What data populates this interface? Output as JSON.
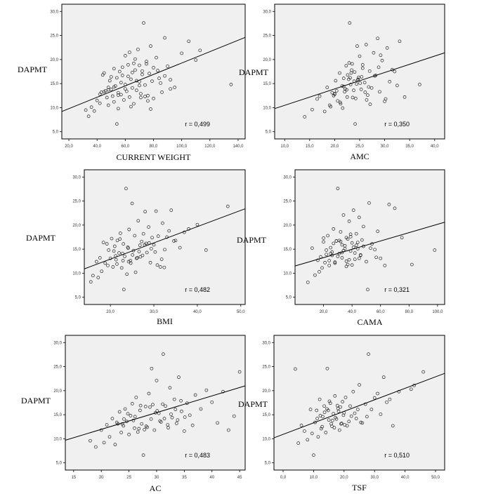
{
  "chart_data": [
    {
      "type": "scatter",
      "xlabel": "CURRENT WEIGHT",
      "ylabel": "DAPMT",
      "annotation": "r = 0,499",
      "xlim": [
        15,
        145
      ],
      "ylim": [
        3.5,
        31.5
      ],
      "x_ticks": [
        "20,0",
        "40,0",
        "60,0",
        "80,0",
        "100,0",
        "120,0",
        "140,0"
      ],
      "x_tick_values": [
        20,
        40,
        60,
        80,
        100,
        120,
        140
      ],
      "y_ticks": [
        "5,0",
        "10,0",
        "15,0",
        "20,0",
        "25,0",
        "30,0"
      ],
      "y_tick_values": [
        5,
        10,
        15,
        20,
        25,
        30
      ],
      "fit_line": {
        "x": [
          15,
          145
        ],
        "y": [
          9.2,
          24.6
        ]
      },
      "x": [
        32,
        34,
        36,
        38,
        40,
        42,
        43,
        44,
        45,
        46,
        47,
        48,
        48,
        49,
        50,
        51,
        52,
        52,
        53,
        54,
        55,
        55,
        56,
        57,
        57,
        58,
        59,
        60,
        60,
        61,
        62,
        63,
        63,
        64,
        65,
        66,
        66,
        67,
        68,
        69,
        70,
        70,
        71,
        72,
        73,
        74,
        75,
        76,
        77,
        78,
        79,
        80,
        82,
        84,
        86,
        88,
        90,
        92,
        95,
        100,
        105,
        110,
        113,
        135,
        50,
        55,
        60,
        65,
        70,
        75,
        80,
        85,
        58,
        62,
        68,
        72,
        76,
        45,
        52,
        64,
        74,
        78,
        88,
        42,
        48,
        54,
        67,
        71,
        83,
        92
      ],
      "y": [
        9.5,
        8.2,
        10.1,
        9.3,
        11.5,
        12.8,
        13.2,
        16.8,
        17.2,
        13.5,
        12.1,
        14.2,
        10.5,
        15.6,
        13.8,
        12.4,
        18.1,
        11.2,
        14.5,
        16.2,
        13.1,
        9.8,
        17.5,
        12.7,
        15.2,
        18.4,
        11.6,
        14.8,
        20.8,
        13.4,
        16.5,
        12.2,
        21.5,
        15.9,
        14.1,
        19.2,
        10.8,
        17.8,
        13.6,
        22.1,
        15.4,
        18.8,
        12.9,
        16.9,
        27.6,
        14.7,
        19.6,
        12.5,
        17.1,
        22.8,
        15.5,
        18.3,
        20.4,
        16.1,
        13.2,
        24.5,
        18.6,
        15.8,
        14.2,
        21.3,
        23.8,
        19.9,
        21.9,
        14.8,
        16.4,
        12.6,
        13.9,
        17.3,
        14.6,
        19.1,
        11.9,
        15.1,
        16.7,
        18.9,
        15.6,
        17.6,
        11.4,
        13.3,
        14.3,
        10.2,
        12.3,
        9.7,
        16.6,
        10.9,
        13.7,
        6.6,
        20.1,
        12.1,
        17.7,
        13.9
      ]
    },
    {
      "type": "scatter",
      "xlabel": "AMC",
      "ylabel": "DAPMT",
      "annotation": "r = 0,350",
      "xlim": [
        8,
        42
      ],
      "ylim": [
        3.5,
        31.5
      ],
      "x_ticks": [
        "10,0",
        "15,0",
        "20,0",
        "25,0",
        "30,0",
        "35,0",
        "40,0"
      ],
      "x_tick_values": [
        10,
        15,
        20,
        25,
        30,
        35,
        40
      ],
      "y_ticks": [
        "5,0",
        "10,0",
        "15,0",
        "20,0",
        "25,0",
        "30,0"
      ],
      "y_tick_values": [
        5,
        10,
        15,
        20,
        25,
        30
      ],
      "fit_line": {
        "x": [
          8,
          42
        ],
        "y": [
          9.8,
          21.4
        ]
      },
      "x": [
        14,
        15.5,
        16.5,
        17,
        18,
        18.5,
        19,
        19.5,
        20,
        20.2,
        20.6,
        21,
        21.2,
        21.5,
        21.8,
        22,
        22.3,
        22.5,
        22.8,
        23,
        23.2,
        23.5,
        23.8,
        24,
        24.2,
        24.5,
        24.8,
        25,
        25.3,
        25.6,
        26,
        26.3,
        26.6,
        27,
        27.4,
        27.8,
        28.2,
        28.6,
        29,
        29.5,
        30,
        30.5,
        31,
        31.5,
        32,
        32.5,
        33,
        34,
        37,
        19.2,
        20.4,
        21.6,
        22.6,
        23.6,
        24.6,
        25.6,
        26.8,
        28,
        29.2,
        21.1,
        22.1,
        23.1,
        24.1,
        25.1,
        26.1,
        27.1,
        20,
        23.4,
        24.4,
        25.4,
        22.9,
        23.9,
        30.2,
        21.8,
        19.8,
        22.4,
        26.4,
        28.8,
        24.7,
        23.3
      ],
      "y": [
        8.1,
        9.6,
        11.8,
        12.4,
        9.2,
        14.2,
        10.5,
        13.1,
        12.8,
        15.6,
        11.4,
        17.2,
        10.8,
        14.5,
        16.1,
        13.3,
        18.7,
        12.2,
        15.9,
        27.6,
        14.8,
        19.1,
        13.6,
        17.4,
        11.9,
        22.8,
        16.3,
        20.7,
        13.8,
        18.9,
        15.2,
        23.1,
        12.6,
        17.6,
        14.1,
        21.4,
        16.7,
        24.4,
        13.3,
        19.8,
        11.3,
        22.4,
        15.4,
        17.9,
        17.5,
        14.6,
        23.8,
        12.2,
        14.8,
        10.2,
        13.5,
        9.9,
        16.8,
        12.1,
        15.7,
        18.2,
        14.3,
        16.6,
        20.9,
        11.1,
        13.9,
        16.2,
        6.6,
        15.1,
        13.2,
        10.7,
        12.9,
        17.8,
        14.9,
        16.4,
        19.3,
        15.5,
        11.8,
        14.4,
        12.5,
        13.7,
        11.6,
        18.4,
        15.9,
        17.2
      ]
    },
    {
      "type": "scatter",
      "xlabel": "BMI",
      "ylabel": "DAPMT",
      "annotation": "r = 0,482",
      "xlim": [
        14,
        51
      ],
      "ylim": [
        3.5,
        31.5
      ],
      "x_ticks": [
        "20,0",
        "30,0",
        "40,0",
        "50,0"
      ],
      "x_tick_values": [
        20,
        30,
        40,
        50
      ],
      "y_ticks": [
        "5,0",
        "10,0",
        "15,0",
        "20,0",
        "25,0",
        "30,0"
      ],
      "y_tick_values": [
        5,
        10,
        15,
        20,
        25,
        30
      ],
      "fit_line": {
        "x": [
          14,
          51
        ],
        "y": [
          10.9,
          23.4
        ]
      },
      "x": [
        15.5,
        16,
        16.8,
        17.2,
        17.6,
        18,
        18.4,
        18.8,
        19.2,
        19.6,
        20,
        20.3,
        20.6,
        21,
        21.3,
        21.6,
        22,
        22.3,
        22.6,
        23,
        23.3,
        23.6,
        24,
        24.3,
        24.6,
        25,
        25.3,
        25.6,
        26,
        26.4,
        26.8,
        27.2,
        27.6,
        28,
        28.4,
        28.8,
        29.2,
        29.6,
        30,
        30.5,
        31,
        31.5,
        32,
        32.5,
        33,
        34,
        35,
        36,
        37,
        38,
        40,
        42,
        47,
        21.5,
        22.8,
        24.2,
        25.8,
        27.4,
        28.9,
        30.3,
        31.8,
        33.5,
        23.8,
        26.2,
        29.4,
        19.4,
        20.8,
        22.2,
        25.1,
        27.9,
        32.4,
        34.6,
        24.7,
        26.6,
        21.2,
        23.1,
        28.2,
        30.8,
        22.9,
        24.1,
        26.9
      ],
      "y": [
        8.2,
        9.5,
        12.4,
        9.1,
        13.2,
        10.4,
        16.4,
        12.1,
        16.1,
        14.8,
        13.1,
        17.2,
        11.3,
        15.6,
        12.8,
        16.8,
        14.2,
        18.3,
        11.1,
        16.1,
        13.5,
        27.6,
        15.4,
        19.1,
        12.6,
        24.5,
        14.7,
        17.8,
        13.1,
        20.9,
        15.8,
        16.6,
        18.2,
        22.8,
        14.3,
        19.6,
        12.2,
        17.4,
        15.9,
        22.9,
        17.7,
        11.3,
        20.4,
        14.9,
        17.5,
        23.1,
        16.8,
        15.3,
        18.5,
        19.2,
        20.1,
        14.8,
        23.9,
        11.9,
        14.1,
        12.4,
        10.2,
        13.7,
        16.3,
        14.4,
        12.9,
        18.8,
        9.8,
        13.2,
        15.1,
        11.6,
        14.6,
        17.1,
        13.8,
        15.9,
        11.2,
        16.7,
        12.1,
        14.5,
        13.6,
        6.6,
        16.2,
        11.7,
        12.6,
        15.2,
        13.4
      ]
    },
    {
      "type": "scatter",
      "xlabel": "CAMA",
      "ylabel": "DAPMT",
      "annotation": "r = 0,321",
      "xlim": [
        0,
        105
      ],
      "ylim": [
        3.5,
        31.5
      ],
      "x_ticks": [
        "20,0",
        "40,0",
        "60,0",
        "80,0",
        "100,0"
      ],
      "x_tick_values": [
        20,
        40,
        60,
        80,
        100
      ],
      "y_ticks": [
        "5,0",
        "10,0",
        "15,0",
        "20,0",
        "25,0",
        "30,0"
      ],
      "y_tick_values": [
        5,
        10,
        15,
        20,
        25,
        30
      ],
      "fit_line": {
        "x": [
          0,
          105
        ],
        "y": [
          11.5,
          20.6
        ]
      },
      "x": [
        9,
        12,
        14,
        16,
        17,
        18,
        19,
        20,
        21,
        22,
        23,
        24,
        25,
        26,
        27,
        28,
        29,
        30,
        31,
        32,
        33,
        34,
        35,
        36,
        37,
        38,
        39,
        40,
        41,
        42,
        43,
        44,
        45,
        46,
        47,
        48,
        50,
        52,
        54,
        56,
        58,
        60,
        63,
        66,
        70,
        75,
        82,
        98,
        24,
        27,
        30,
        33,
        36,
        39,
        42,
        45,
        48,
        28,
        31,
        34,
        37,
        40,
        43,
        22,
        26,
        35,
        38,
        44,
        51,
        57,
        20,
        25,
        32,
        36,
        41,
        46,
        53,
        29,
        33,
        39
      ],
      "y": [
        8.1,
        15.2,
        9.6,
        12.7,
        10.3,
        13.4,
        11.1,
        16.5,
        12.2,
        14.8,
        17.8,
        11.6,
        15.3,
        13.7,
        19.2,
        12.1,
        16.7,
        27.6,
        14.1,
        18.6,
        13.2,
        22.1,
        15.7,
        17.4,
        11.8,
        20.8,
        14.6,
        16.3,
        23.1,
        12.9,
        18.2,
        15.1,
        21.6,
        13.8,
        16.9,
        19.7,
        12.4,
        24.6,
        16.1,
        14.9,
        18.7,
        13.1,
        11.6,
        24.3,
        23.5,
        17.4,
        11.8,
        14.8,
        12.6,
        16.2,
        13.5,
        15.9,
        11.4,
        17.6,
        14.2,
        13.1,
        15.6,
        12.3,
        16.8,
        14.7,
        17.1,
        11.7,
        15.8,
        13.9,
        14.4,
        15.1,
        12.8,
        16.4,
        6.6,
        13.3,
        17.3,
        14.1,
        16.6,
        12.5,
        15.4,
        13.7,
        15.2,
        16.7,
        14.3,
        18.1
      ]
    },
    {
      "type": "scatter",
      "xlabel": "AC",
      "ylabel": "DAPMT",
      "annotation": "r = 0,483",
      "xlim": [
        13.5,
        46
      ],
      "ylim": [
        3.5,
        31.5
      ],
      "x_ticks": [
        "15",
        "20",
        "25",
        "30",
        "35",
        "40",
        "45"
      ],
      "x_tick_values": [
        15,
        20,
        25,
        30,
        35,
        40,
        45
      ],
      "y_ticks": [
        "5,0",
        "10,0",
        "15,0",
        "20,0",
        "25,0",
        "30,0"
      ],
      "y_tick_values": [
        5,
        10,
        15,
        20,
        25,
        30
      ],
      "fit_line": {
        "x": [
          13.5,
          46
        ],
        "y": [
          9.7,
          21.0
        ]
      },
      "x": [
        18,
        19,
        20,
        20.5,
        21,
        21.5,
        22,
        22.5,
        23,
        23.3,
        23.6,
        24,
        24.3,
        24.6,
        25,
        25.3,
        25.6,
        26,
        26.3,
        26.6,
        27,
        27.3,
        27.6,
        28,
        28.3,
        28.6,
        29,
        29.3,
        29.6,
        30,
        30.4,
        30.8,
        31.2,
        31.6,
        32,
        32.4,
        32.8,
        33.2,
        33.6,
        34,
        34.5,
        35,
        35.5,
        36,
        36.5,
        37,
        38,
        39,
        40,
        41,
        42,
        43,
        44,
        45,
        24.8,
        26.8,
        28.8,
        30.6,
        32.6,
        34.4,
        25.8,
        27.8,
        29.8,
        31.4,
        33.4,
        23.8,
        26.1,
        28.1,
        30.1,
        32.1,
        22.8,
        27.1,
        31.1,
        35.1,
        29.1,
        33.8,
        24.1
      ],
      "y": [
        9.6,
        8.3,
        11.8,
        9.2,
        12.9,
        10.4,
        14.2,
        8.8,
        13.1,
        15.6,
        11.3,
        12.7,
        16.2,
        13.6,
        10.9,
        14.8,
        17.3,
        12.2,
        18.6,
        11.4,
        15.9,
        13.1,
        6.6,
        16.7,
        12.4,
        19.4,
        14.1,
        17.1,
        11.8,
        22.1,
        15.3,
        13.5,
        27.6,
        16.8,
        12.9,
        20.6,
        14.4,
        18.2,
        13.2,
        22.8,
        15.7,
        11.6,
        17.4,
        14.9,
        12.8,
        19.1,
        16.2,
        20.1,
        17.6,
        13.3,
        19.8,
        11.8,
        14.7,
        23.9,
        15.2,
        12.1,
        16.6,
        13.7,
        15.1,
        17.9,
        13.8,
        11.9,
        15.4,
        14.2,
        16.1,
        13.1,
        14.6,
        12.6,
        15.8,
        12.3,
        13.4,
        16.9,
        17.2,
        14.5,
        24.6,
        13.9,
        14.1
      ]
    },
    {
      "type": "scatter",
      "xlabel": "TSF",
      "ylabel": "DAPMT",
      "annotation": "r = 0,510",
      "xlim": [
        -3,
        53
      ],
      "ylim": [
        3.5,
        31.5
      ],
      "x_ticks": [
        "0,0",
        "10,0",
        "20,0",
        "30,0",
        "40,0",
        "50,0"
      ],
      "x_tick_values": [
        0,
        10,
        20,
        30,
        40,
        50
      ],
      "y_ticks": [
        "5,0",
        "10,0",
        "15,0",
        "20,0",
        "25,0",
        "30,0"
      ],
      "y_tick_values": [
        5,
        10,
        15,
        20,
        25,
        30
      ],
      "fit_line": {
        "x": [
          -3,
          53
        ],
        "y": [
          10.2,
          23.6
        ]
      },
      "x": [
        4,
        5,
        6,
        7,
        8,
        9,
        10,
        10.5,
        11,
        11.5,
        12,
        12.5,
        13,
        13.5,
        14,
        14.5,
        15,
        15.5,
        16,
        16.5,
        17,
        17.5,
        18,
        18.5,
        19,
        19.5,
        20,
        20.5,
        21,
        22,
        23,
        24,
        25,
        26,
        27,
        28,
        29,
        30,
        31,
        32,
        33,
        34,
        35,
        36,
        38,
        42,
        43,
        46,
        11.2,
        12.8,
        14.4,
        16.2,
        18.2,
        20.2,
        22.4,
        13.6,
        15.8,
        17.8,
        19.8,
        21.6,
        12.2,
        14.8,
        16.8,
        18.8,
        23.5,
        25.5,
        9.5,
        15.2,
        17.2,
        19.2,
        24.5,
        27.5
      ],
      "y": [
        24.5,
        9.1,
        12.8,
        11.6,
        9.8,
        16.1,
        6.6,
        13.4,
        15.9,
        10.4,
        18.2,
        12.1,
        14.6,
        16.8,
        11.3,
        24.6,
        13.9,
        17.4,
        12.6,
        15.2,
        18.9,
        14.1,
        16.3,
        11.8,
        13.1,
        17.7,
        15.4,
        18.6,
        12.7,
        16.8,
        19.8,
        14.2,
        21.2,
        13.3,
        17.2,
        27.6,
        16.1,
        18.5,
        19.4,
        15.1,
        22.8,
        17.6,
        18.2,
        12.7,
        19.8,
        20.3,
        21.1,
        23.9,
        14.2,
        12.5,
        16.2,
        13.8,
        15.7,
        12.9,
        14.7,
        15.5,
        13.1,
        16.9,
        14.9,
        13.6,
        14.8,
        15.9,
        12.3,
        16.6,
        15.3,
        13.4,
        11.1,
        17.8,
        14.4,
        13.2,
        16.1,
        14.6
      ]
    }
  ]
}
